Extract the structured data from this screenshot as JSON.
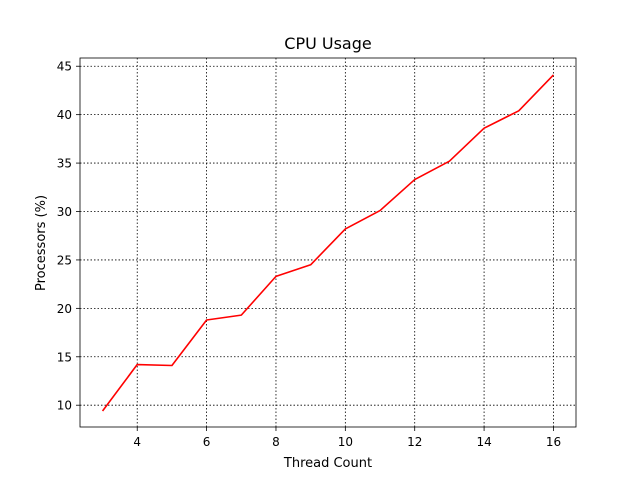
{
  "chart_data": {
    "type": "line",
    "title": "CPU Usage",
    "xlabel": "Thread Count",
    "ylabel": "Processors (%)",
    "xlim": [
      2.35,
      16.65
    ],
    "ylim": [
      7.75,
      45.85
    ],
    "x_ticks": [
      4,
      6,
      8,
      10,
      12,
      14,
      16
    ],
    "y_ticks": [
      10,
      15,
      20,
      25,
      30,
      35,
      40,
      45
    ],
    "grid": true,
    "series": [
      {
        "color": "#ff0000",
        "x": [
          3,
          4,
          5,
          6,
          7,
          8,
          9,
          10,
          11,
          12,
          13,
          14,
          15,
          16
        ],
        "y": [
          9.4,
          14.2,
          14.1,
          18.8,
          19.3,
          23.3,
          24.5,
          28.2,
          30.1,
          33.3,
          35.2,
          38.6,
          40.4,
          44.1
        ]
      }
    ]
  }
}
